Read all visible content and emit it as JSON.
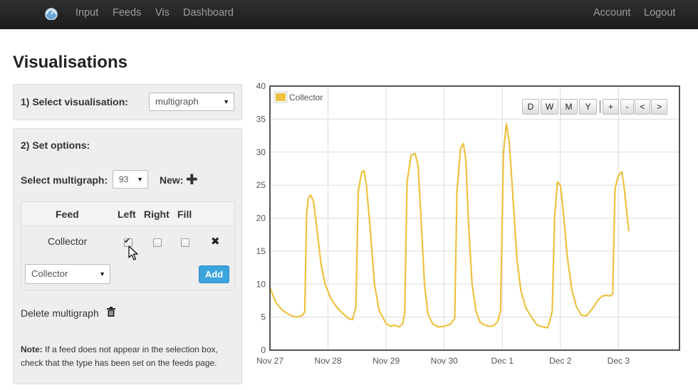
{
  "navbar": {
    "logo": "emoncms-logo-icon",
    "links": [
      "Input",
      "Feeds",
      "Vis",
      "Dashboard"
    ],
    "right_links": [
      "Account",
      "Logout"
    ]
  },
  "page": {
    "title": "Visualisations"
  },
  "step1": {
    "label": "1) Select visualisation:",
    "selected": "multigraph"
  },
  "step2": {
    "label": "2) Set options:",
    "multigraph_label": "Select multigraph:",
    "multigraph_value": "93",
    "new_label": "New:",
    "table": {
      "headers": [
        "Feed",
        "Left",
        "Right",
        "Fill"
      ],
      "rows": [
        {
          "feed": "Collector",
          "left": true,
          "right": false,
          "fill": false
        }
      ]
    },
    "feed_select": "Collector",
    "add_label": "Add",
    "delete_label": "Delete multigraph",
    "note_bold": "Note:",
    "note_text": " If a feed does not appear in the selection box, check that the type has been set on the feeds page."
  },
  "chart_controls": [
    "D",
    "W",
    "M",
    "Y",
    "+",
    "-",
    "<",
    ">"
  ],
  "colors": {
    "series": "#edc240",
    "accent": "#3aa4dd",
    "navbar": "#222222"
  },
  "chart_data": {
    "type": "line",
    "title": "",
    "xlabel": "",
    "ylabel": "",
    "ylim": [
      0,
      40
    ],
    "yticks": [
      0,
      5,
      10,
      15,
      20,
      25,
      30,
      35,
      40
    ],
    "xticks": [
      "Nov 27",
      "Nov 28",
      "Nov 29",
      "Nov 30",
      "Dec 1",
      "Dec 2",
      "Dec 3"
    ],
    "xlim": [
      0,
      7.05
    ],
    "legend": "top-left",
    "grid": true,
    "series": [
      {
        "name": "Collector",
        "color": "#edc240",
        "points": [
          [
            -0.08,
            13
          ],
          [
            0.0,
            9.5
          ],
          [
            0.1,
            7.2
          ],
          [
            0.22,
            6.0
          ],
          [
            0.35,
            5.3
          ],
          [
            0.45,
            5.0
          ],
          [
            0.55,
            5.2
          ],
          [
            0.6,
            5.8
          ],
          [
            0.63,
            20.5
          ],
          [
            0.66,
            23.0
          ],
          [
            0.7,
            23.5
          ],
          [
            0.75,
            22.5
          ],
          [
            0.8,
            19.0
          ],
          [
            0.88,
            13.0
          ],
          [
            0.95,
            10.0
          ],
          [
            1.05,
            7.8
          ],
          [
            1.15,
            6.5
          ],
          [
            1.25,
            5.6
          ],
          [
            1.35,
            4.8
          ],
          [
            1.42,
            4.6
          ],
          [
            1.48,
            6.5
          ],
          [
            1.52,
            24.0
          ],
          [
            1.58,
            27.0
          ],
          [
            1.62,
            27.2
          ],
          [
            1.66,
            25.0
          ],
          [
            1.72,
            19.0
          ],
          [
            1.8,
            10.0
          ],
          [
            1.88,
            6.0
          ],
          [
            1.93,
            5.2
          ],
          [
            2.0,
            4.0
          ],
          [
            2.08,
            3.6
          ],
          [
            2.15,
            3.8
          ],
          [
            2.22,
            3.5
          ],
          [
            2.28,
            3.9
          ],
          [
            2.32,
            5.5
          ],
          [
            2.36,
            25.5
          ],
          [
            2.43,
            29.5
          ],
          [
            2.5,
            29.8
          ],
          [
            2.55,
            28.0
          ],
          [
            2.6,
            20.0
          ],
          [
            2.66,
            10.0
          ],
          [
            2.72,
            5.5
          ],
          [
            2.8,
            4.0
          ],
          [
            2.9,
            3.5
          ],
          [
            3.0,
            3.6
          ],
          [
            3.1,
            3.9
          ],
          [
            3.18,
            4.8
          ],
          [
            3.22,
            24.0
          ],
          [
            3.28,
            30.5
          ],
          [
            3.33,
            31.3
          ],
          [
            3.37,
            29.0
          ],
          [
            3.42,
            19.0
          ],
          [
            3.48,
            10.0
          ],
          [
            3.55,
            5.8
          ],
          [
            3.62,
            4.2
          ],
          [
            3.7,
            3.8
          ],
          [
            3.78,
            3.6
          ],
          [
            3.85,
            3.7
          ],
          [
            3.92,
            4.3
          ],
          [
            3.97,
            6.0
          ],
          [
            4.02,
            30.0
          ],
          [
            4.07,
            34.3
          ],
          [
            4.12,
            31.5
          ],
          [
            4.17,
            25.0
          ],
          [
            4.25,
            14.0
          ],
          [
            4.32,
            9.0
          ],
          [
            4.4,
            6.5
          ],
          [
            4.5,
            5.0
          ],
          [
            4.6,
            3.8
          ],
          [
            4.7,
            3.5
          ],
          [
            4.78,
            3.4
          ],
          [
            4.82,
            4.5
          ],
          [
            4.86,
            6.0
          ],
          [
            4.9,
            20.0
          ],
          [
            4.95,
            25.5
          ],
          [
            5.0,
            25.0
          ],
          [
            5.05,
            21.0
          ],
          [
            5.12,
            14.0
          ],
          [
            5.2,
            9.0
          ],
          [
            5.28,
            6.5
          ],
          [
            5.36,
            5.3
          ],
          [
            5.45,
            5.2
          ],
          [
            5.55,
            6.3
          ],
          [
            5.65,
            7.6
          ],
          [
            5.72,
            8.2
          ],
          [
            5.8,
            8.3
          ],
          [
            5.86,
            8.2
          ],
          [
            5.9,
            8.5
          ],
          [
            5.94,
            24.5
          ],
          [
            6.0,
            26.5
          ],
          [
            6.06,
            27.0
          ],
          [
            6.1,
            24.5
          ],
          [
            6.14,
            21.0
          ],
          [
            6.18,
            18.0
          ]
        ]
      }
    ]
  }
}
